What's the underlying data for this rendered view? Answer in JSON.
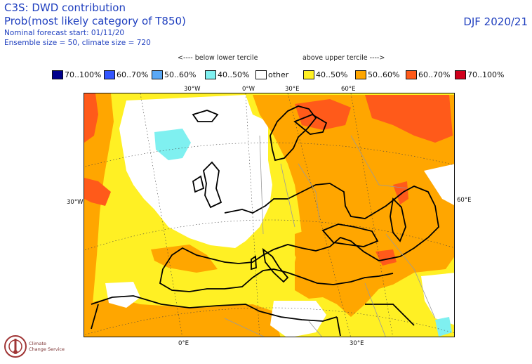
{
  "header": {
    "line1": "C3S: DWD contribution",
    "line2": "Prob(most likely category of T850)",
    "line3": "Nominal forecast start: 01/11/20",
    "line4": "Ensemble size = 50, climate size = 720",
    "season": "DJF 2020/21"
  },
  "legend": {
    "below_label": "<---- below lower tercile",
    "above_label": "above upper tercile ---->",
    "items": [
      {
        "label": "70..100%",
        "color": "#00008c"
      },
      {
        "label": "60..70%",
        "color": "#3356ff"
      },
      {
        "label": "50..60%",
        "color": "#5aa8f5"
      },
      {
        "label": "40..50%",
        "color": "#7ff0f0"
      },
      {
        "label": "other",
        "color": "#ffffff"
      },
      {
        "label": "40..50%",
        "color": "#fff024"
      },
      {
        "label": "50..60%",
        "color": "#ffa600"
      },
      {
        "label": "60..70%",
        "color": "#ff5a1a"
      },
      {
        "label": "70..100%",
        "color": "#d0001c"
      }
    ]
  },
  "grid_labels": {
    "top_30w": "30°W",
    "top_0e": "0°W",
    "top_30e": "30°E",
    "top_60e": "60°E",
    "left_30w": "30°W",
    "right_60e": "60°E",
    "bottom_0e": "0°E",
    "bottom_30e": "30°E"
  },
  "logo": {
    "line1": "Climate",
    "line2": "Change Service"
  }
}
